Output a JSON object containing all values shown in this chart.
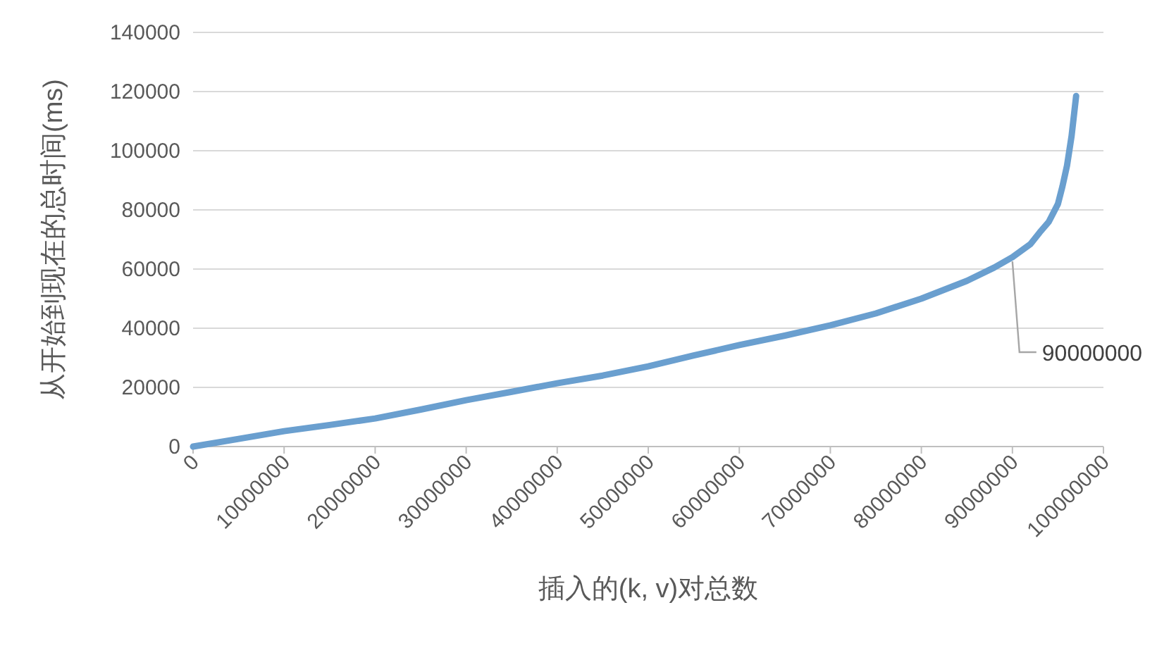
{
  "chart_data": {
    "type": "line",
    "xlabel": "插入的(k, v)对总数",
    "ylabel": "从开始到现在的总时间(ms)",
    "x": [
      0,
      5000000,
      10000000,
      15000000,
      20000000,
      25000000,
      30000000,
      35000000,
      40000000,
      45000000,
      50000000,
      55000000,
      60000000,
      65000000,
      70000000,
      75000000,
      80000000,
      85000000,
      88000000,
      90000000,
      92000000,
      93000000,
      94000000,
      95000000,
      95500000,
      96000000,
      96500000,
      97000000
    ],
    "series": [
      {
        "color": "#6a9fcf",
        "values": [
          0,
          2600,
          5200,
          7300,
          9500,
          12500,
          15700,
          18500,
          21400,
          24000,
          27100,
          30800,
          34300,
          37500,
          41000,
          45000,
          50000,
          56000,
          60500,
          64000,
          68500,
          72400,
          76000,
          82000,
          88000,
          95000,
          105000,
          118500
        ]
      }
    ],
    "xlim": [
      0,
      100000000
    ],
    "ylim": [
      0,
      140000
    ],
    "xticks": [
      0,
      10000000,
      20000000,
      30000000,
      40000000,
      50000000,
      60000000,
      70000000,
      80000000,
      90000000,
      100000000
    ],
    "yticks": [
      0,
      20000,
      40000,
      60000,
      80000,
      100000,
      120000,
      140000
    ],
    "grid": "y",
    "line_style": "solid",
    "annotations": [
      {
        "text": "90000000",
        "x": 90000000,
        "y": 64000
      }
    ]
  }
}
